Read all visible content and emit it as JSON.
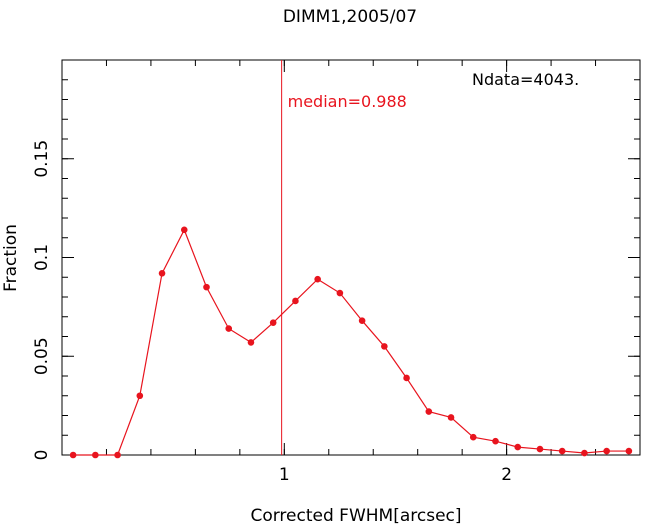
{
  "chart_data": {
    "type": "line",
    "title": "DIMM1,2005/07",
    "xlabel": "Corrected FWHM[arcsec]",
    "ylabel": "Fraction",
    "xlim": [
      0,
      2.6
    ],
    "ylim": [
      0,
      0.2
    ],
    "xticks": [
      {
        "value": 1,
        "label": "1"
      },
      {
        "value": 2,
        "label": "2"
      }
    ],
    "yticks": [
      {
        "value": 0,
        "label": "0"
      },
      {
        "value": 0.05,
        "label": "0.05"
      },
      {
        "value": 0.1,
        "label": "0.1"
      },
      {
        "value": 0.15,
        "label": "0.15"
      }
    ],
    "grid": false,
    "series": [
      {
        "color": "#e8141e",
        "x": [
          0.05,
          0.15,
          0.25,
          0.35,
          0.45,
          0.55,
          0.65,
          0.75,
          0.85,
          0.95,
          1.05,
          1.15,
          1.25,
          1.35,
          1.45,
          1.55,
          1.65,
          1.75,
          1.85,
          1.95,
          2.05,
          2.15,
          2.25,
          2.35,
          2.45,
          2.55
        ],
        "y": [
          0.0,
          0.0,
          0.0,
          0.03,
          0.092,
          0.114,
          0.085,
          0.064,
          0.057,
          0.067,
          0.078,
          0.089,
          0.082,
          0.068,
          0.055,
          0.039,
          0.022,
          0.019,
          0.009,
          0.007,
          0.004,
          0.003,
          0.002,
          0.001,
          0.002,
          0.002
        ]
      }
    ],
    "median": {
      "value": 0.988,
      "label": "median=0.988",
      "color": "#e8141e"
    },
    "ndata_label": "Ndata=4043."
  }
}
